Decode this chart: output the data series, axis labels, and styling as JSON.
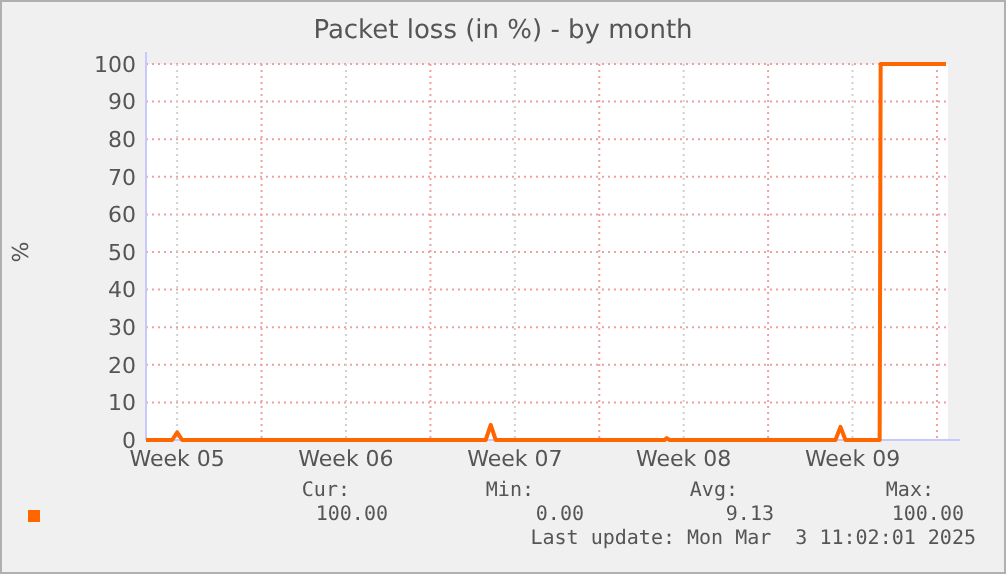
{
  "chart_data": {
    "type": "line",
    "title": "Packet loss (in %) - by month",
    "ylabel": "%",
    "x": [
      "2025-01-29T05:00",
      "2025-01-30T07:00",
      "2025-01-30T12:00",
      "2025-01-30T17:00",
      "2025-02-12T07:00",
      "2025-02-12T12:00",
      "2025-02-12T17:00",
      "2025-02-19T17:00",
      "2025-02-19T19:00",
      "2025-02-19T22:00",
      "2025-02-26T19:00",
      "2025-02-27T00:00",
      "2025-02-27T05:00",
      "2025-02-28T15:00",
      "2025-02-28T16:00",
      "2025-03-03T09:00"
    ],
    "series": [
      {
        "color": "#ff6600",
        "values": [
          0,
          0,
          2,
          0,
          0,
          4,
          0,
          0,
          0.5,
          0,
          0,
          3.5,
          0,
          0,
          100,
          100
        ]
      }
    ],
    "xlim": [
      "2025-01-29T05:00",
      "2025-03-03T11:00"
    ],
    "xticks": [
      {
        "value": "2025-01-30T12:00",
        "label": "Week 05"
      },
      {
        "value": "2025-02-03",
        "label": null
      },
      {
        "value": "2025-02-06T12:00",
        "label": "Week 06"
      },
      {
        "value": "2025-02-10",
        "label": null
      },
      {
        "value": "2025-02-13T12:00",
        "label": "Week 07"
      },
      {
        "value": "2025-02-17",
        "label": null
      },
      {
        "value": "2025-02-20T12:00",
        "label": "Week 08"
      },
      {
        "value": "2025-02-24",
        "label": null
      },
      {
        "value": "2025-02-27T12:00",
        "label": "Week 09"
      },
      {
        "value": "2025-03-03",
        "label": null
      }
    ],
    "ylim": [
      0,
      100
    ],
    "yticks": [
      0,
      10,
      20,
      30,
      40,
      50,
      60,
      70,
      80,
      90,
      100
    ],
    "grid": true,
    "line_style": "solid",
    "annotations": [
      "Cur:",
      "Min:",
      "Avg:",
      "Max:",
      "100.00",
      "0.00",
      "9.13",
      "100.00",
      "Last update: Mon Mar  3 11:02:01 2025"
    ]
  }
}
